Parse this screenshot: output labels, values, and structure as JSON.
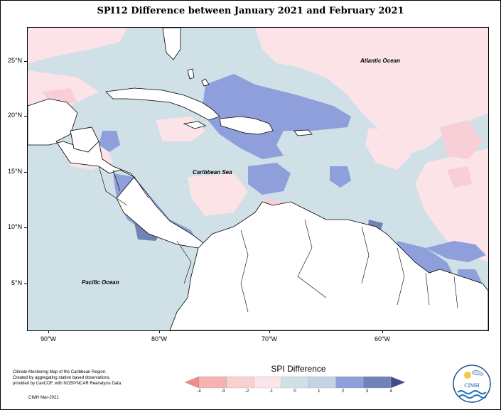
{
  "title": "SPI12 Difference between January 2021 and February 2021",
  "lat_labels": [
    "25°N",
    "20°N",
    "15°N",
    "10°N",
    "5°N"
  ],
  "lon_labels": [
    "90°W",
    "80°W",
    "70°W",
    "60°W"
  ],
  "map_labels": {
    "atlantic": "Atlantic Ocean",
    "caribbean": "Caribbean Sea",
    "pacific": "Pacific Ocean"
  },
  "credit_lines": [
    "Climate Monitoring Map of the Caribbean Region.",
    "Created by aggregating station based observations,",
    "provided by CariCOF, with NCEP/NCAR Reanalysis Data."
  ],
  "credit_date": "CIMH Mar-2021",
  "legend": {
    "title": "SPI Difference",
    "labels": [
      "-4",
      "-3",
      "-2",
      "-1",
      "0",
      "1",
      "2",
      "3",
      "4"
    ],
    "colors": [
      "#f28c8c",
      "#f5b3b3",
      "#f8d0d0",
      "#fbe5e8",
      "#cfe0e6",
      "#c5d3e6",
      "#8e9fdb",
      "#6f83b8",
      "#3f4c8c"
    ]
  },
  "logo_text": "CIMH",
  "colors": {
    "ocean_neutral": "#cfe0e6",
    "pink_light": "#fbe3e8",
    "pink_mid": "#f8cfd6",
    "blue_mid": "#8e9fdb",
    "blue_dark": "#6f83b8",
    "land": "#ffffff"
  }
}
